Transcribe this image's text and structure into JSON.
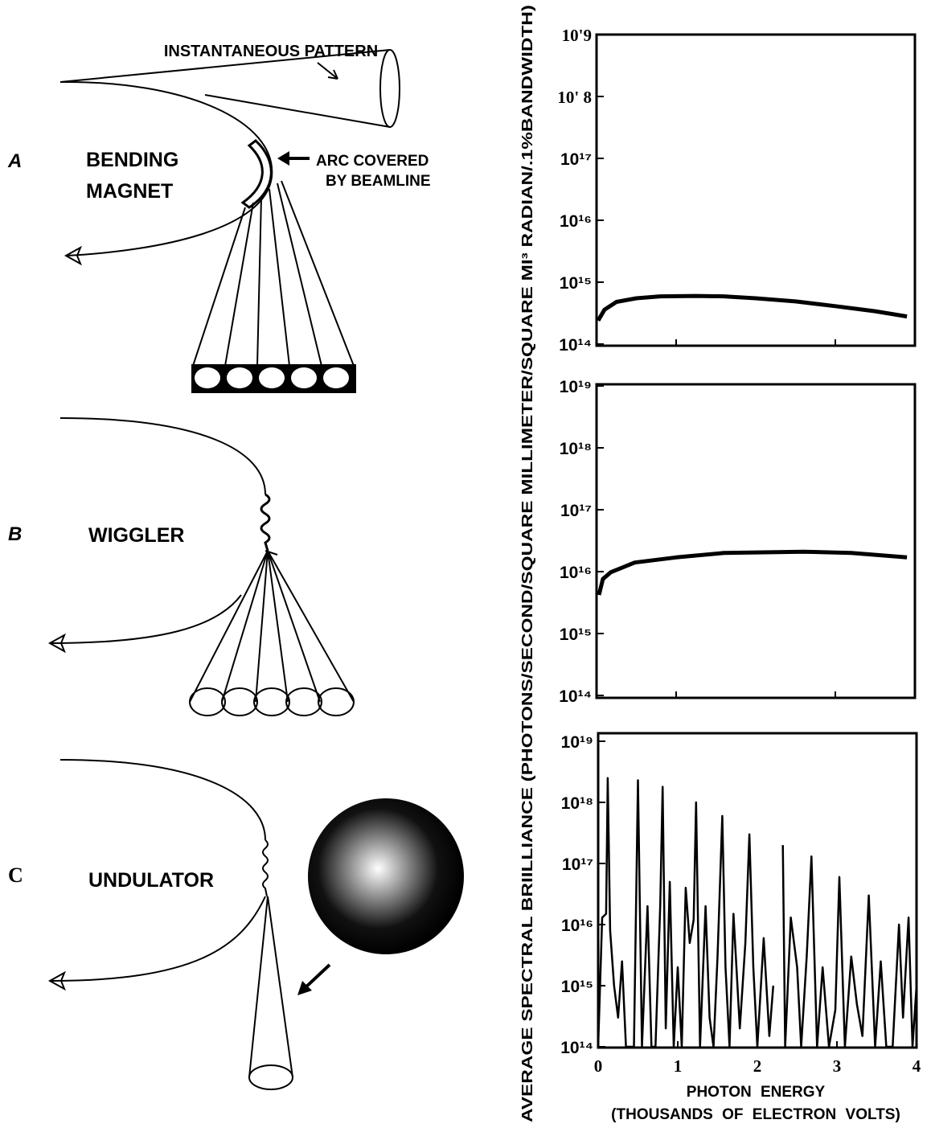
{
  "diagram": {
    "pattern_label": "INSTANTANEOUS PATTERN",
    "arc_label": [
      "ARC COVERED",
      "BY BEAMLINE"
    ],
    "panels": [
      {
        "letter": "A",
        "label": [
          "BENDING",
          "MAGNET"
        ]
      },
      {
        "letter": "B",
        "label": [
          "WIGGLER"
        ]
      },
      {
        "letter": "C",
        "label": [
          "UNDULATOR"
        ]
      }
    ]
  },
  "ylabel": "AVERAGE SPECTRAL BRIILLIANCE (PHOTONS/SECOND/SQUARE MILLIMETER/SQUARE MI³ RADIAN/.1%BANDWIDTH)",
  "chart_data": [
    {
      "type": "line",
      "log_scale": true,
      "color": "#000000",
      "xlim": [
        0,
        4
      ],
      "xticks": [
        1,
        3
      ],
      "xtick_labels": false,
      "ylim": [
        100000000000000.0,
        1e+19
      ],
      "yticks": [
        {
          "value": 1e+19,
          "label": "10'9"
        },
        {
          "value": 1e+18,
          "label": "10' 8"
        },
        {
          "value": 1e+17,
          "label": "10¹⁷"
        },
        {
          "value": 1e+16,
          "label": "10¹⁶"
        },
        {
          "value": 1000000000000000.0,
          "label": "10¹⁵"
        },
        {
          "value": 100000000000000.0,
          "label": "10¹⁴"
        }
      ],
      "x": [
        0.02,
        0.1,
        0.25,
        0.5,
        0.8,
        1.25,
        1.6,
        2,
        2.5,
        3,
        3.5,
        3.9
      ],
      "values": [
        240000000000000.0,
        360000000000000.0,
        480000000000000.0,
        550000000000000.0,
        590000000000000.0,
        600000000000000.0,
        590000000000000.0,
        550000000000000.0,
        490000000000000.0,
        410000000000000.0,
        340000000000000.0,
        280000000000000.0
      ]
    },
    {
      "type": "line",
      "log_scale": true,
      "color": "#000000",
      "xlim": [
        0,
        4
      ],
      "xticks": [
        1,
        3
      ],
      "xtick_labels": false,
      "ylim": [
        100000000000000.0,
        1e+19
      ],
      "yticks": [
        {
          "value": 1e+19,
          "label": "10¹⁹"
        },
        {
          "value": 1e+18,
          "label": "10¹⁸"
        },
        {
          "value": 1e+17,
          "label": "10¹⁷"
        },
        {
          "value": 1e+16,
          "label": "10¹⁶"
        },
        {
          "value": 1000000000000000.0,
          "label": "10¹⁵"
        },
        {
          "value": 100000000000000.0,
          "label": "10¹⁴"
        }
      ],
      "x": [
        0.03,
        0.08,
        0.18,
        0.48,
        1.0,
        1.6,
        2.6,
        3.2,
        3.9
      ],
      "values": [
        4200000000000000.0,
        7600000000000000.0,
        9800000000000000.0,
        1.4e+16,
        1.7e+16,
        2e+16,
        2.1e+16,
        2e+16,
        1.7e+16
      ]
    },
    {
      "type": "line",
      "log_scale": true,
      "color": "#000000",
      "xlim": [
        0,
        4
      ],
      "xticks": [
        0,
        1,
        2,
        3,
        4
      ],
      "xtick_labels": true,
      "xlabel": "PHOTON ENERGY",
      "xlabel_unit": "(THOUSANDS OF ELECTRON VOLTS)",
      "ylim": [
        100000000000000.0,
        1e+19
      ],
      "yticks": [
        {
          "value": 1e+19,
          "label": "10¹⁹"
        },
        {
          "value": 1e+18,
          "label": "10¹⁸"
        },
        {
          "value": 1e+17,
          "label": "10¹⁷"
        },
        {
          "value": 1e+16,
          "label": "10¹⁶"
        },
        {
          "value": 1000000000000000.0,
          "label": "10¹⁵"
        },
        {
          "value": 100000000000000.0,
          "label": "10¹⁴"
        }
      ],
      "x": [
        0,
        0.05,
        0.1,
        0.12,
        0.15,
        0.2,
        0.25,
        0.3,
        0.35,
        0.45,
        0.5,
        0.55,
        0.62,
        0.67,
        0.72,
        0.78,
        0.81,
        0.85,
        0.9,
        0.95,
        1.0,
        1.05,
        1.1,
        1.15,
        1.2,
        1.23,
        1.28,
        1.35,
        1.4,
        1.45,
        1.5,
        1.56,
        1.6,
        1.65,
        1.7,
        1.78,
        1.85,
        1.9,
        1.95,
        2.0,
        2.08,
        2.15,
        2.2,
        2.23,
        2.32,
        2.35,
        2.42,
        2.5,
        2.55,
        2.62,
        2.68,
        2.75,
        2.82,
        2.9,
        2.98,
        3.03,
        3.1,
        3.18,
        3.25,
        3.32,
        3.4,
        3.48,
        3.55,
        3.62,
        3.7,
        3.78,
        3.83,
        3.9,
        3.95,
        4.0
      ],
      "values": [
        100000000000000.0,
        1.3e+16,
        1.5e+16,
        2.5e+18,
        8000000000000000.0,
        1000000000000000.0,
        300000000000000.0,
        2500000000000000.0,
        100000000000000.0,
        100000000000000.0,
        2.3e+18,
        100000000000000.0,
        2e+16,
        100000000000000.0,
        100000000000000.0,
        2e+16,
        1.8e+18,
        200000000000000.0,
        5e+16,
        100000000000000.0,
        2000000000000000.0,
        100000000000000.0,
        4e+16,
        5000000000000000.0,
        1.2e+16,
        1e+18,
        100000000000000.0,
        2e+16,
        300000000000000.0,
        100000000000000.0,
        3000000000000000.0,
        6e+17,
        2000000000000000.0,
        100000000000000.0,
        1.5e+16,
        200000000000000.0,
        5000000000000000.0,
        3e+17,
        2000000000000000.0,
        100000000000000.0,
        6000000000000000.0,
        150000000000000.0,
        1000000000000000.0,
        null,
        2e+17,
        100000000000000.0,
        1.3e+16,
        2000000000000000.0,
        100000000000000.0,
        3000000000000000.0,
        1.3e+17,
        100000000000000.0,
        2000000000000000.0,
        100000000000000.0,
        400000000000000.0,
        6e+16,
        100000000000000.0,
        3000000000000000.0,
        500000000000000.0,
        150000000000000.0,
        3e+16,
        100000000000000.0,
        2500000000000000.0,
        100000000000000.0,
        100000000000000.0,
        1e+16,
        300000000000000.0,
        1.3e+16,
        100000000000000.0,
        1000000000000000.0
      ]
    }
  ]
}
